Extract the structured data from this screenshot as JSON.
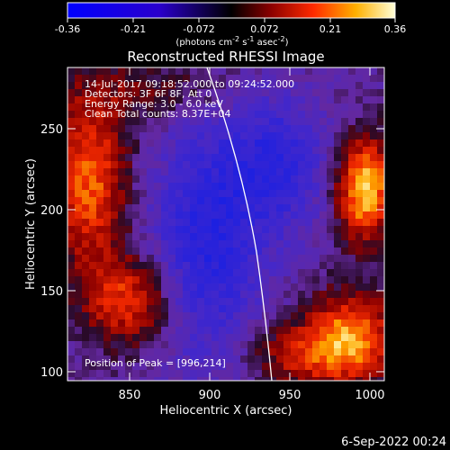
{
  "colorbar": {
    "ticks": [
      "-0.36",
      "-0.21",
      "-0.072",
      "0.072",
      "0.21",
      "0.36"
    ],
    "units_prefix": "(photons cm",
    "units_sup1": "-2",
    "units_mid": " s",
    "units_sup2": "-1",
    "units_mid2": " asec",
    "units_sup3": "-2",
    "units_suffix": ")"
  },
  "image": {
    "title": "Reconstructed RHESSI Image",
    "info_lines": [
      "14-Jul-2017 09:18:52.000 to 09:24:52.000",
      "Detectors: 3F 6F 8F, Att 0",
      "Energy Range: 3.0 - 6.0 keV",
      "Clean    Total counts: 8.37E+04"
    ],
    "peak_text": "Position of Peak = [996,214]"
  },
  "axes": {
    "xlabel": "Heliocentric X (arcsec)",
    "ylabel": "Heliocentric Y (arcsec)",
    "xticks": [
      "850",
      "900",
      "950",
      "1000"
    ],
    "yticks": [
      "250",
      "200",
      "150",
      "100"
    ]
  },
  "footer": {
    "date": "6-Sep-2022 00:24"
  }
}
